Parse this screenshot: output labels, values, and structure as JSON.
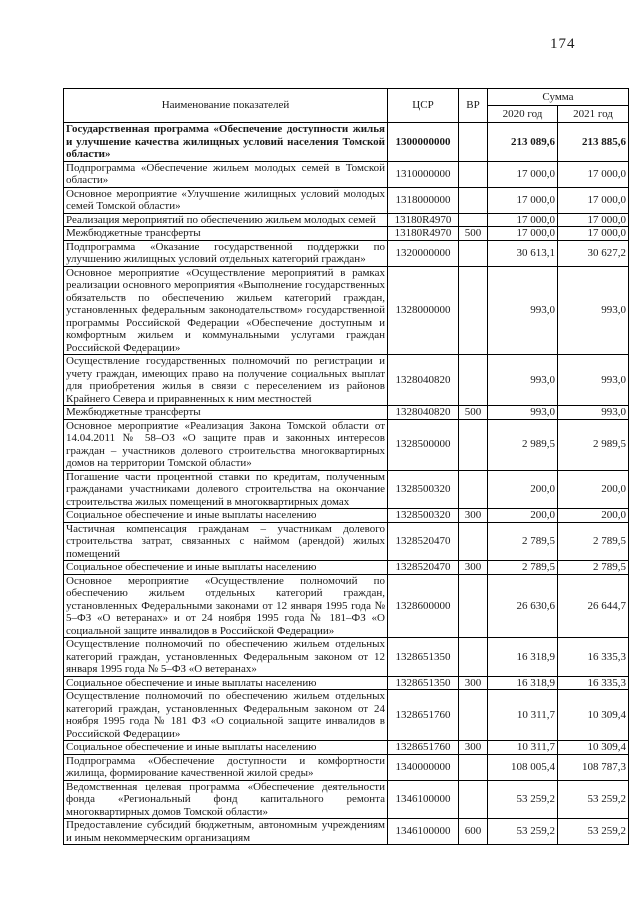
{
  "page": {
    "number": "174"
  },
  "table": {
    "headers": {
      "name": "Наименование показателей",
      "csr": "ЦСР",
      "vr": "ВР",
      "sum": "Сумма",
      "year2020": "2020 год",
      "year2021": "2021 год"
    },
    "rows": [
      {
        "name": "Государственная программа «Обеспечение доступности жилья и улучшение качества жилищных условий населения Томской области»",
        "csr": "1300000000",
        "vr": "",
        "y2020": "213 089,6",
        "y2021": "213 885,6",
        "bold": true
      },
      {
        "name": "Подпрограмма «Обеспечение жильем молодых семей в Томской области»",
        "csr": "1310000000",
        "vr": "",
        "y2020": "17 000,0",
        "y2021": "17 000,0"
      },
      {
        "name": "Основное мероприятие «Улучшение жилищных условий молодых семей Томской области»",
        "csr": "1318000000",
        "vr": "",
        "y2020": "17 000,0",
        "y2021": "17 000,0"
      },
      {
        "name": "Реализация мероприятий по обеспечению жильем молодых семей",
        "csr": "13180R4970",
        "vr": "",
        "y2020": "17 000,0",
        "y2021": "17 000,0"
      },
      {
        "name": "Межбюджетные трансферты",
        "csr": "13180R4970",
        "vr": "500",
        "y2020": "17 000,0",
        "y2021": "17 000,0"
      },
      {
        "name": "Подпрограмма «Оказание государственной поддержки по улучшению жилищных условий отдельных категорий граждан»",
        "csr": "1320000000",
        "vr": "",
        "y2020": "30 613,1",
        "y2021": "30 627,2"
      },
      {
        "name": "Основное мероприятие «Осуществление мероприятий в рамках реализации основного мероприятия «Выполнение государственных обязательств по обеспечению жильем категорий граждан, установленных федеральным законодательством» государственной программы Российской Федерации «Обеспечение доступным и комфортным жильем и коммунальными услугами граждан Российской Федерации»",
        "csr": "1328000000",
        "vr": "",
        "y2020": "993,0",
        "y2021": "993,0"
      },
      {
        "name": "Осуществление государственных полномочий по регистрации и учету граждан, имеющих право на получение социальных выплат для приобретения жилья в связи с переселением из районов Крайнего Севера и приравненных к ним местностей",
        "csr": "1328040820",
        "vr": "",
        "y2020": "993,0",
        "y2021": "993,0"
      },
      {
        "name": "Межбюджетные трансферты",
        "csr": "1328040820",
        "vr": "500",
        "y2020": "993,0",
        "y2021": "993,0"
      },
      {
        "name": "Основное мероприятие «Реализация Закона Томской области от 14.04.2011 № 58–ОЗ «О защите прав и законных интересов граждан – участников долевого строительства многоквартирных домов на территории Томской области»",
        "csr": "1328500000",
        "vr": "",
        "y2020": "2 989,5",
        "y2021": "2 989,5"
      },
      {
        "name": "Погашение части процентной ставки по кредитам, полученным гражданами  участниками долевого строительства на окончание строительства жилых помещений в многоквартирных домах",
        "csr": "1328500320",
        "vr": "",
        "y2020": "200,0",
        "y2021": "200,0"
      },
      {
        "name": "Социальное обеспечение и иные выплаты населению",
        "csr": "1328500320",
        "vr": "300",
        "y2020": "200,0",
        "y2021": "200,0"
      },
      {
        "name": "Частичная компенсация гражданам – участникам долевого строительства затрат, связанных с наймом (арендой) жилых помещений",
        "csr": "1328520470",
        "vr": "",
        "y2020": "2 789,5",
        "y2021": "2 789,5"
      },
      {
        "name": "Социальное обеспечение и иные выплаты населению",
        "csr": "1328520470",
        "vr": "300",
        "y2020": "2 789,5",
        "y2021": "2 789,5"
      },
      {
        "name": "Основное мероприятие «Осуществление полномочий по обеспечению жильем отдельных категорий граждан, установленных Федеральными законами от 12 января 1995 года № 5–ФЗ «О ветеранах» и от 24 ноября 1995 года № 181–ФЗ «О социальной защите инвалидов в Российской Федерации»",
        "csr": "1328600000",
        "vr": "",
        "y2020": "26 630,6",
        "y2021": "26 644,7"
      },
      {
        "name": "Осуществление полномочий по обеспечению жильем отдельных категорий граждан, установленных Федеральным законом от 12 января 1995 года № 5–ФЗ «О ветеранах»",
        "csr": "1328651350",
        "vr": "",
        "y2020": "16 318,9",
        "y2021": "16 335,3"
      },
      {
        "name": "Социальное обеспечение и иные выплаты населению",
        "csr": "1328651350",
        "vr": "300",
        "y2020": "16 318,9",
        "y2021": "16 335,3"
      },
      {
        "name": "Осуществление полномочий по обеспечению жильем отдельных категорий граждан, установленных Федеральным законом от 24 ноября 1995 года № 181 ФЗ «О социальной защите инвалидов в Российской Федерации»",
        "csr": "1328651760",
        "vr": "",
        "y2020": "10 311,7",
        "y2021": "10 309,4"
      },
      {
        "name": "Социальное обеспечение и иные выплаты населению",
        "csr": "1328651760",
        "vr": "300",
        "y2020": "10 311,7",
        "y2021": "10 309,4"
      },
      {
        "name": "Подпрограмма «Обеспечение доступности и комфортности жилища, формирование качественной жилой среды»",
        "csr": "1340000000",
        "vr": "",
        "y2020": "108 005,4",
        "y2021": "108 787,3"
      },
      {
        "name": "Ведомственная целевая программа «Обеспечение деятельности фонда «Региональный фонд капитального ремонта многоквартирных домов Томской области»",
        "csr": "1346100000",
        "vr": "",
        "y2020": "53 259,2",
        "y2021": "53 259,2"
      },
      {
        "name": "Предоставление субсидий бюджетным, автономным учреждениям и иным некоммерческим организациям",
        "csr": "1346100000",
        "vr": "600",
        "y2020": "53 259,2",
        "y2021": "53 259,2"
      }
    ]
  }
}
